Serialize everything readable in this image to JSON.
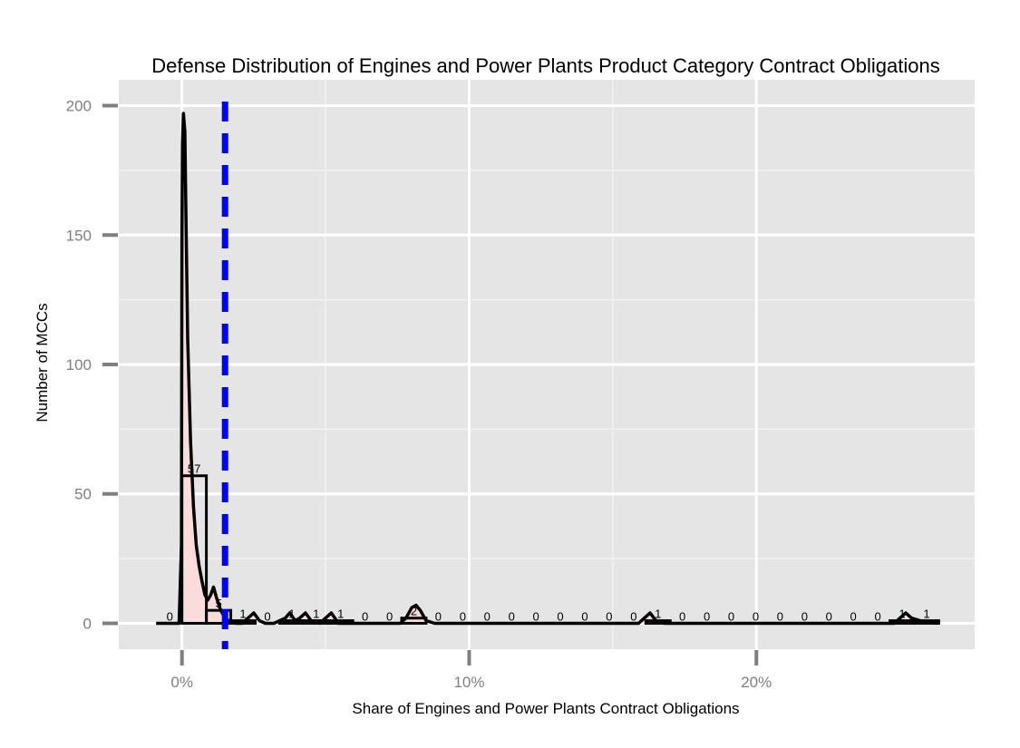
{
  "chart_data": {
    "type": "bar",
    "title": "Defense Distribution of Engines and Power Plants Product Category Contract Obligations",
    "xlabel": "Share of Engines and Power Plants Contract Obligations",
    "ylabel": "Number of MCCs",
    "x_unit": "percent",
    "xlim": [
      -2.2,
      27.6
    ],
    "ylim": [
      -10,
      210
    ],
    "x_ticks": [
      0,
      10,
      20
    ],
    "x_tick_labels": [
      "0%",
      "10%",
      "20%"
    ],
    "y_ticks": [
      0,
      50,
      100,
      150,
      200
    ],
    "y_tick_labels": [
      "0",
      "50",
      "100",
      "150",
      "200"
    ],
    "grid": true,
    "bin_width": 0.85,
    "bins": [
      {
        "start": -0.85,
        "count": 0,
        "label": "0"
      },
      {
        "start": 0.0,
        "count": 57,
        "label": "57"
      },
      {
        "start": 0.85,
        "count": 5,
        "label": "5"
      },
      {
        "start": 1.7,
        "count": 1,
        "label": "1"
      },
      {
        "start": 2.55,
        "count": 0,
        "label": "0"
      },
      {
        "start": 3.4,
        "count": 1,
        "label": "1"
      },
      {
        "start": 4.25,
        "count": 1,
        "label": "1"
      },
      {
        "start": 5.1,
        "count": 1,
        "label": "1"
      },
      {
        "start": 5.95,
        "count": 0,
        "label": "0"
      },
      {
        "start": 6.8,
        "count": 0,
        "label": "0"
      },
      {
        "start": 7.65,
        "count": 2,
        "label": "2"
      },
      {
        "start": 8.5,
        "count": 0,
        "label": "0"
      },
      {
        "start": 9.35,
        "count": 0,
        "label": "0"
      },
      {
        "start": 10.2,
        "count": 0,
        "label": "0"
      },
      {
        "start": 11.05,
        "count": 0,
        "label": "0"
      },
      {
        "start": 11.9,
        "count": 0,
        "label": "0"
      },
      {
        "start": 12.75,
        "count": 0,
        "label": "0"
      },
      {
        "start": 13.6,
        "count": 0,
        "label": "0"
      },
      {
        "start": 14.45,
        "count": 0,
        "label": "0"
      },
      {
        "start": 15.3,
        "count": 0,
        "label": "0"
      },
      {
        "start": 16.15,
        "count": 1,
        "label": "1"
      },
      {
        "start": 17.0,
        "count": 0,
        "label": "0"
      },
      {
        "start": 17.85,
        "count": 0,
        "label": "0"
      },
      {
        "start": 18.7,
        "count": 0,
        "label": "0"
      },
      {
        "start": 19.55,
        "count": 0,
        "label": "0"
      },
      {
        "start": 20.4,
        "count": 0,
        "label": "0"
      },
      {
        "start": 21.25,
        "count": 0,
        "label": "0"
      },
      {
        "start": 22.1,
        "count": 0,
        "label": "0"
      },
      {
        "start": 22.95,
        "count": 0,
        "label": "0"
      },
      {
        "start": 23.8,
        "count": 0,
        "label": "0"
      },
      {
        "start": 24.65,
        "count": 1,
        "label": "1"
      },
      {
        "start": 25.5,
        "count": 1,
        "label": "1"
      }
    ],
    "reference_line": {
      "x": 1.5,
      "color": "#0000ff",
      "style": "dashed"
    },
    "density": [
      [
        -0.9,
        0
      ],
      [
        -0.1,
        0
      ],
      [
        -0.02,
        30
      ],
      [
        0.0,
        150
      ],
      [
        0.02,
        185
      ],
      [
        0.05,
        197
      ],
      [
        0.1,
        190
      ],
      [
        0.15,
        150
      ],
      [
        0.2,
        110
      ],
      [
        0.3,
        70
      ],
      [
        0.4,
        45
      ],
      [
        0.5,
        30
      ],
      [
        0.6,
        22
      ],
      [
        0.7,
        16
      ],
      [
        0.8,
        11
      ],
      [
        0.9,
        9
      ],
      [
        1.0,
        11
      ],
      [
        1.1,
        14
      ],
      [
        1.2,
        10
      ],
      [
        1.35,
        5
      ],
      [
        1.5,
        2
      ],
      [
        1.7,
        0.5
      ],
      [
        1.9,
        0
      ],
      [
        2.1,
        0
      ],
      [
        2.3,
        2
      ],
      [
        2.5,
        4
      ],
      [
        2.7,
        1
      ],
      [
        2.9,
        0
      ],
      [
        3.2,
        0
      ],
      [
        3.6,
        2
      ],
      [
        3.75,
        4
      ],
      [
        3.95,
        1
      ],
      [
        4.1,
        2
      ],
      [
        4.3,
        4
      ],
      [
        4.5,
        1
      ],
      [
        4.8,
        0
      ],
      [
        5.0,
        2
      ],
      [
        5.2,
        4
      ],
      [
        5.45,
        0
      ],
      [
        7.6,
        0
      ],
      [
        7.8,
        2
      ],
      [
        8.0,
        6
      ],
      [
        8.15,
        7
      ],
      [
        8.3,
        5
      ],
      [
        8.5,
        1
      ],
      [
        8.8,
        0
      ],
      [
        15.9,
        0
      ],
      [
        16.1,
        2
      ],
      [
        16.3,
        4
      ],
      [
        16.5,
        1
      ],
      [
        16.8,
        0
      ],
      [
        24.8,
        0
      ],
      [
        25.0,
        2
      ],
      [
        25.2,
        4
      ],
      [
        25.4,
        2
      ],
      [
        25.7,
        1
      ],
      [
        26.0,
        0.5
      ],
      [
        26.3,
        0
      ]
    ]
  },
  "colors": {
    "panel_background": "#e5e5e5",
    "grid_major": "#ffffff",
    "grid_minor": "#f2f2f2",
    "bar_fill": "#ffffff",
    "bar_outline": "#000000",
    "density_fill": "#ffdada",
    "density_line": "#000000",
    "tick_text": "#7f7f7f",
    "tick_mark": "#7f7f7f",
    "reference_line": "#0000ff"
  }
}
